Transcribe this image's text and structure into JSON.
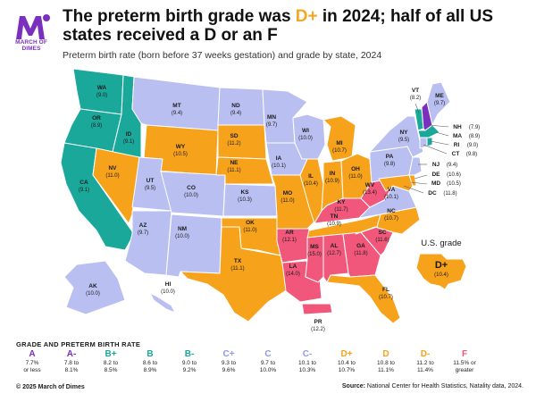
{
  "header": {
    "logo_text": "MARCH OF DIMES",
    "title_part1": "The preterm birth grade was ",
    "title_grade": "D+",
    "title_part2": " in 2024; half of all US states received a D or an F",
    "subtitle": "Preterm birth rate (born before 37 weeks gestation) and grade by state, 2024"
  },
  "colors": {
    "A": "#7b2fbe",
    "A-": "#7b2fbe",
    "B+": "#19a89a",
    "B": "#19a89a",
    "B-": "#19a89a",
    "C+": "#b9bff0",
    "C": "#b9bff0",
    "C-": "#b9bff0",
    "D+": "#f7a21b",
    "D": "#f7a21b",
    "D-": "#f7a21b",
    "F": "#f0577a"
  },
  "states": {
    "WA": "(9.0)",
    "OR": "(8.9)",
    "CA": "(9.1)",
    "ID": "(9.1)",
    "NV": "(11.0)",
    "MT": "(9.4)",
    "WY": "(10.5)",
    "UT": "(9.5)",
    "AZ": "(9.7)",
    "CO": "(10.0)",
    "NM": "(10.0)",
    "ND": "(9.4)",
    "SD": "(11.2)",
    "NE": "(11.1)",
    "KS": "(10.3)",
    "OK": "(11.0)",
    "TX": "(11.1)",
    "MN": "(9.7)",
    "IA": "(10.1)",
    "MO": "(11.0)",
    "AR": "(12.1)",
    "LA": "(14.0)",
    "WI": "(10.0)",
    "IL": "(10.4)",
    "MI": "(10.7)",
    "IN": "(10.9)",
    "OH": "(11.0)",
    "KY": "(11.7)",
    "TN": "(10.9)",
    "MS": "(15.0)",
    "AL": "(12.7)",
    "GA": "(11.8)",
    "FL": "(10.7)",
    "SC": "(11.6)",
    "NC": "(10.7)",
    "VA": "(10.1)",
    "WV": "(13.4)",
    "PA": "(9.8)",
    "NY": "(9.5)",
    "VT": "(8.2)",
    "ME": "(9.7)",
    "NH": "(7.9)",
    "MA": "(8.9)",
    "RI": "(9.0)",
    "CT": "(9.8)",
    "NJ": "(9.4)",
    "DE": "(10.6)",
    "MD": "(10.5)",
    "DC": "(11.8)",
    "AK": "(10.0)",
    "HI": "(10.0)",
    "PR": "(12.2)"
  },
  "us": {
    "label": "U.S. grade",
    "grade": "D+",
    "value": "(10.4)"
  },
  "legend": {
    "title": "GRADE AND PRETERM BIRTH RATE",
    "items": [
      {
        "grade": "A",
        "line1": "7.7%",
        "line2": "or less"
      },
      {
        "grade": "A-",
        "line1": "7.8 to",
        "line2": "8.1%"
      },
      {
        "grade": "B+",
        "line1": "8.2 to",
        "line2": "8.5%"
      },
      {
        "grade": "B",
        "line1": "8.6 to",
        "line2": "8.9%"
      },
      {
        "grade": "B-",
        "line1": "9.0 to",
        "line2": "9.2%"
      },
      {
        "grade": "C+",
        "line1": "9.3 to",
        "line2": "9.6%"
      },
      {
        "grade": "C",
        "line1": "9.7 to",
        "line2": "10.0%"
      },
      {
        "grade": "C-",
        "line1": "10.1 to",
        "line2": "10.3%"
      },
      {
        "grade": "D+",
        "line1": "10.4 to",
        "line2": "10.7%"
      },
      {
        "grade": "D",
        "line1": "10.8 to",
        "line2": "11.1%"
      },
      {
        "grade": "D-",
        "line1": "11.2 to",
        "line2": "11.4%"
      },
      {
        "grade": "F",
        "line1": "11.5% or",
        "line2": "greater"
      }
    ]
  },
  "footer": {
    "copyright": "© 2025 March of Dimes",
    "source_label": "Source:",
    "source_text": " National Center for Health Statistics, Natality data, 2024."
  }
}
